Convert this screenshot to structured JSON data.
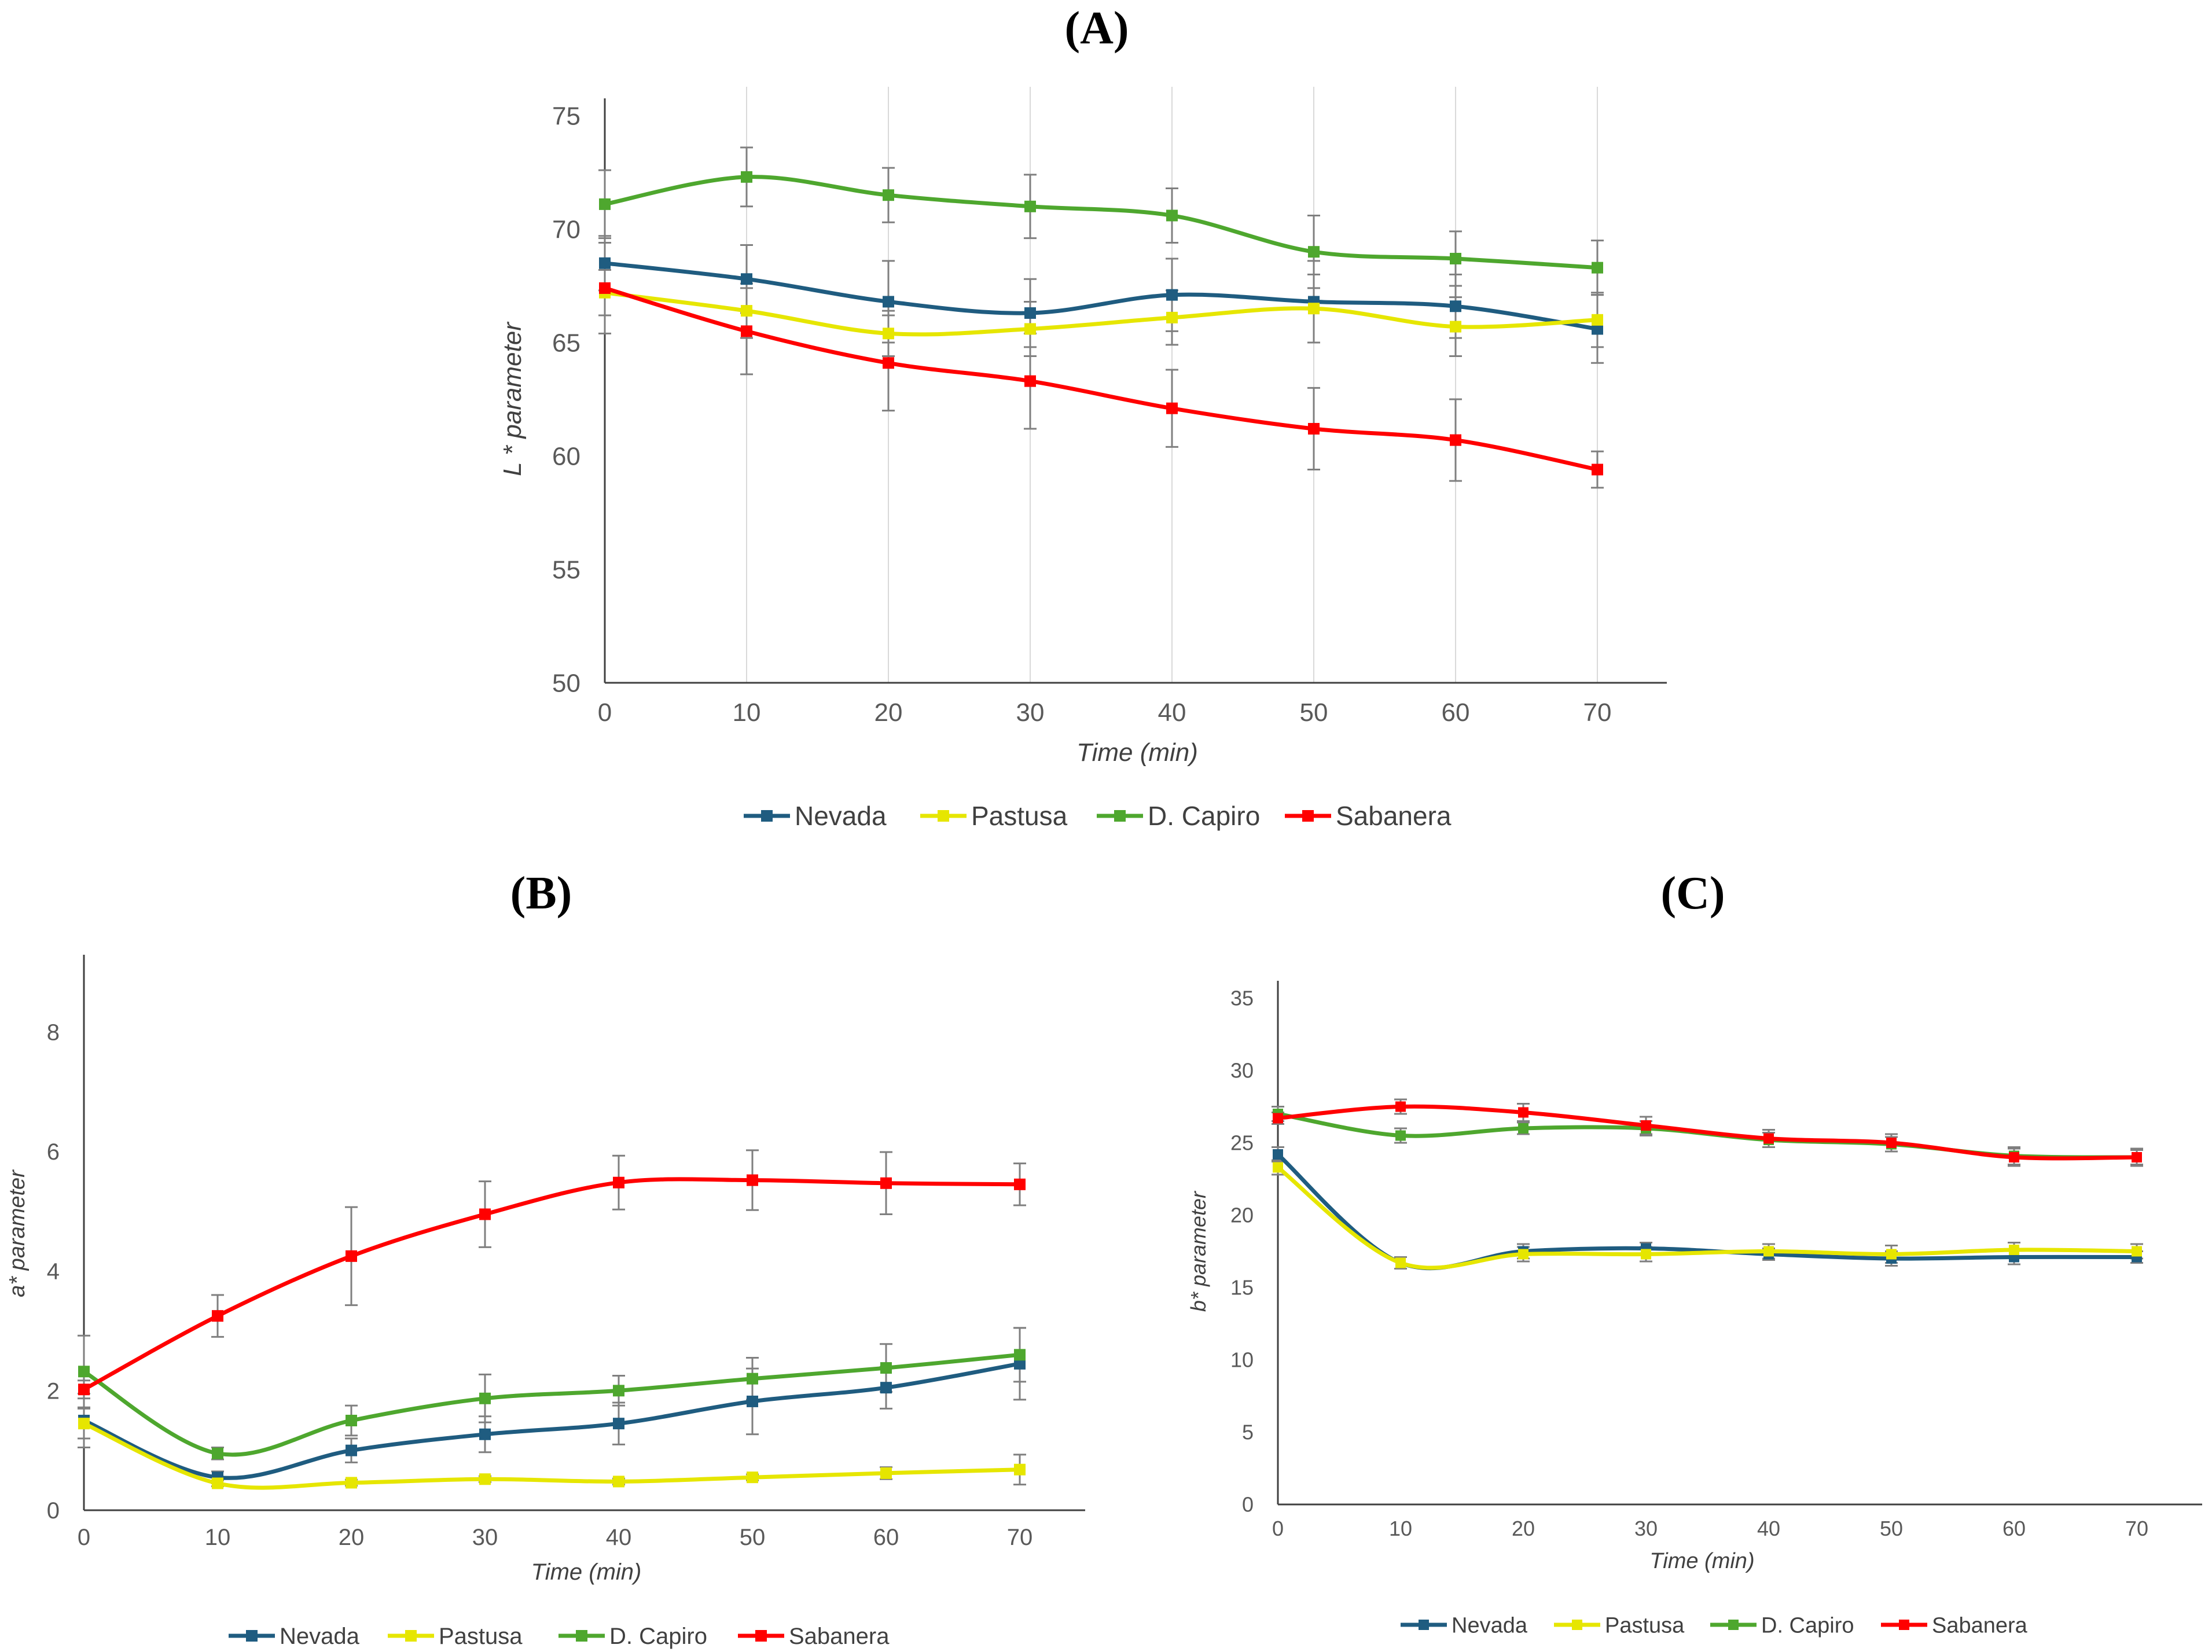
{
  "chart_data": [
    {
      "panel": "(A)",
      "type": "line",
      "xlabel": "Time (min)",
      "ylabel": "L * parameter",
      "x": [
        0,
        10,
        20,
        30,
        40,
        50,
        60,
        70
      ],
      "xticks": [
        "0",
        "10",
        "20",
        "30",
        "40",
        "50",
        "60",
        "70"
      ],
      "ylim": [
        50,
        75
      ],
      "yticks": [
        "50",
        "55",
        "60",
        "65",
        "70",
        "75"
      ],
      "grid": "vertical",
      "legend": "bottom",
      "series": [
        {
          "name": "Nevada",
          "color": "#1f5c80",
          "values": [
            68.5,
            67.8,
            66.8,
            66.3,
            67.1,
            66.8,
            66.6,
            65.6
          ],
          "errors": [
            1.2,
            1.5,
            1.8,
            1.5,
            1.6,
            1.8,
            1.4,
            1.5
          ]
        },
        {
          "name": "Pastusa",
          "color": "#e6e600",
          "values": [
            67.2,
            66.4,
            65.4,
            65.6,
            66.1,
            66.5,
            65.7,
            66.0
          ],
          "errors": [
            1.0,
            1.2,
            1.0,
            1.2,
            1.2,
            1.5,
            1.3,
            1.2
          ]
        },
        {
          "name": "D. Capiro",
          "color": "#4ea72e",
          "values": [
            71.1,
            72.3,
            71.5,
            71.0,
            70.6,
            69.0,
            68.7,
            68.3
          ],
          "errors": [
            1.5,
            1.3,
            1.2,
            1.4,
            1.2,
            1.6,
            1.2,
            1.2
          ]
        },
        {
          "name": "Sabanera",
          "color": "#ff0000",
          "values": [
            67.4,
            65.5,
            64.1,
            63.3,
            62.1,
            61.2,
            60.7,
            59.4
          ],
          "errors": [
            2.0,
            1.9,
            2.1,
            2.1,
            1.7,
            1.8,
            1.8,
            0.8
          ]
        }
      ]
    },
    {
      "panel": "(B)",
      "type": "line",
      "xlabel": "Time (min)",
      "ylabel": "a* parameter",
      "x": [
        0,
        10,
        20,
        30,
        40,
        50,
        60,
        70
      ],
      "xticks": [
        "0",
        "10",
        "20",
        "30",
        "40",
        "50",
        "60",
        "70"
      ],
      "ylim": [
        0,
        9
      ],
      "yticks": [
        "0",
        "2",
        "4",
        "6",
        "8"
      ],
      "grid": "none",
      "legend": "bottom",
      "series": [
        {
          "name": "Nevada",
          "color": "#1f5c80",
          "values": [
            1.5,
            0.55,
            1.0,
            1.27,
            1.45,
            1.82,
            2.05,
            2.45
          ],
          "errors": [
            0.45,
            0.1,
            0.2,
            0.3,
            0.35,
            0.55,
            0.35,
            0.6
          ]
        },
        {
          "name": "Pastusa",
          "color": "#e6e600",
          "values": [
            1.45,
            0.45,
            0.46,
            0.52,
            0.48,
            0.55,
            0.62,
            0.68
          ],
          "errors": [
            0.25,
            0.05,
            0.05,
            0.05,
            0.05,
            0.05,
            0.1,
            0.25
          ]
        },
        {
          "name": "D. Capiro",
          "color": "#4ea72e",
          "values": [
            2.32,
            0.95,
            1.5,
            1.87,
            2.0,
            2.2,
            2.38,
            2.6
          ],
          "errors": [
            0.6,
            0.1,
            0.25,
            0.4,
            0.25,
            0.35,
            0.4,
            0.45
          ]
        },
        {
          "name": "Sabanera",
          "color": "#ff0000",
          "values": [
            2.02,
            3.25,
            4.25,
            4.95,
            5.48,
            5.52,
            5.47,
            5.45
          ],
          "errors": [
            0.15,
            0.35,
            0.82,
            0.55,
            0.45,
            0.5,
            0.52,
            0.35
          ]
        }
      ]
    },
    {
      "panel": "(C)",
      "type": "line",
      "xlabel": "Time (min)",
      "ylabel": "b* parameter",
      "x": [
        0,
        10,
        20,
        30,
        40,
        50,
        60,
        70
      ],
      "xticks": [
        "0",
        "10",
        "20",
        "30",
        "40",
        "50",
        "60",
        "70"
      ],
      "ylim": [
        0,
        35
      ],
      "yticks": [
        "0",
        "5",
        "10",
        "15",
        "20",
        "25",
        "30",
        "35"
      ],
      "grid": "none",
      "legend": "bottom",
      "series": [
        {
          "name": "Nevada",
          "color": "#1f5c80",
          "values": [
            24.2,
            16.7,
            17.5,
            17.7,
            17.3,
            17.0,
            17.1,
            17.1
          ],
          "errors": [
            0.5,
            0.4,
            0.5,
            0.4,
            0.4,
            0.5,
            0.5,
            0.4
          ]
        },
        {
          "name": "Pastusa",
          "color": "#e6e600",
          "values": [
            23.3,
            16.7,
            17.3,
            17.3,
            17.5,
            17.3,
            17.6,
            17.5
          ],
          "errors": [
            0.5,
            0.4,
            0.5,
            0.5,
            0.5,
            0.6,
            0.5,
            0.5
          ]
        },
        {
          "name": "D. Capiro",
          "color": "#4ea72e",
          "values": [
            27.0,
            25.5,
            26.0,
            26.0,
            25.2,
            24.9,
            24.1,
            24.0
          ],
          "errors": [
            0.5,
            0.5,
            0.4,
            0.5,
            0.5,
            0.5,
            0.6,
            0.5
          ]
        },
        {
          "name": "Sabanera",
          "color": "#ff0000",
          "values": [
            26.7,
            27.5,
            27.1,
            26.2,
            25.3,
            25.0,
            24.0,
            24.0
          ],
          "errors": [
            0.4,
            0.5,
            0.6,
            0.6,
            0.6,
            0.6,
            0.6,
            0.6
          ]
        }
      ]
    }
  ]
}
